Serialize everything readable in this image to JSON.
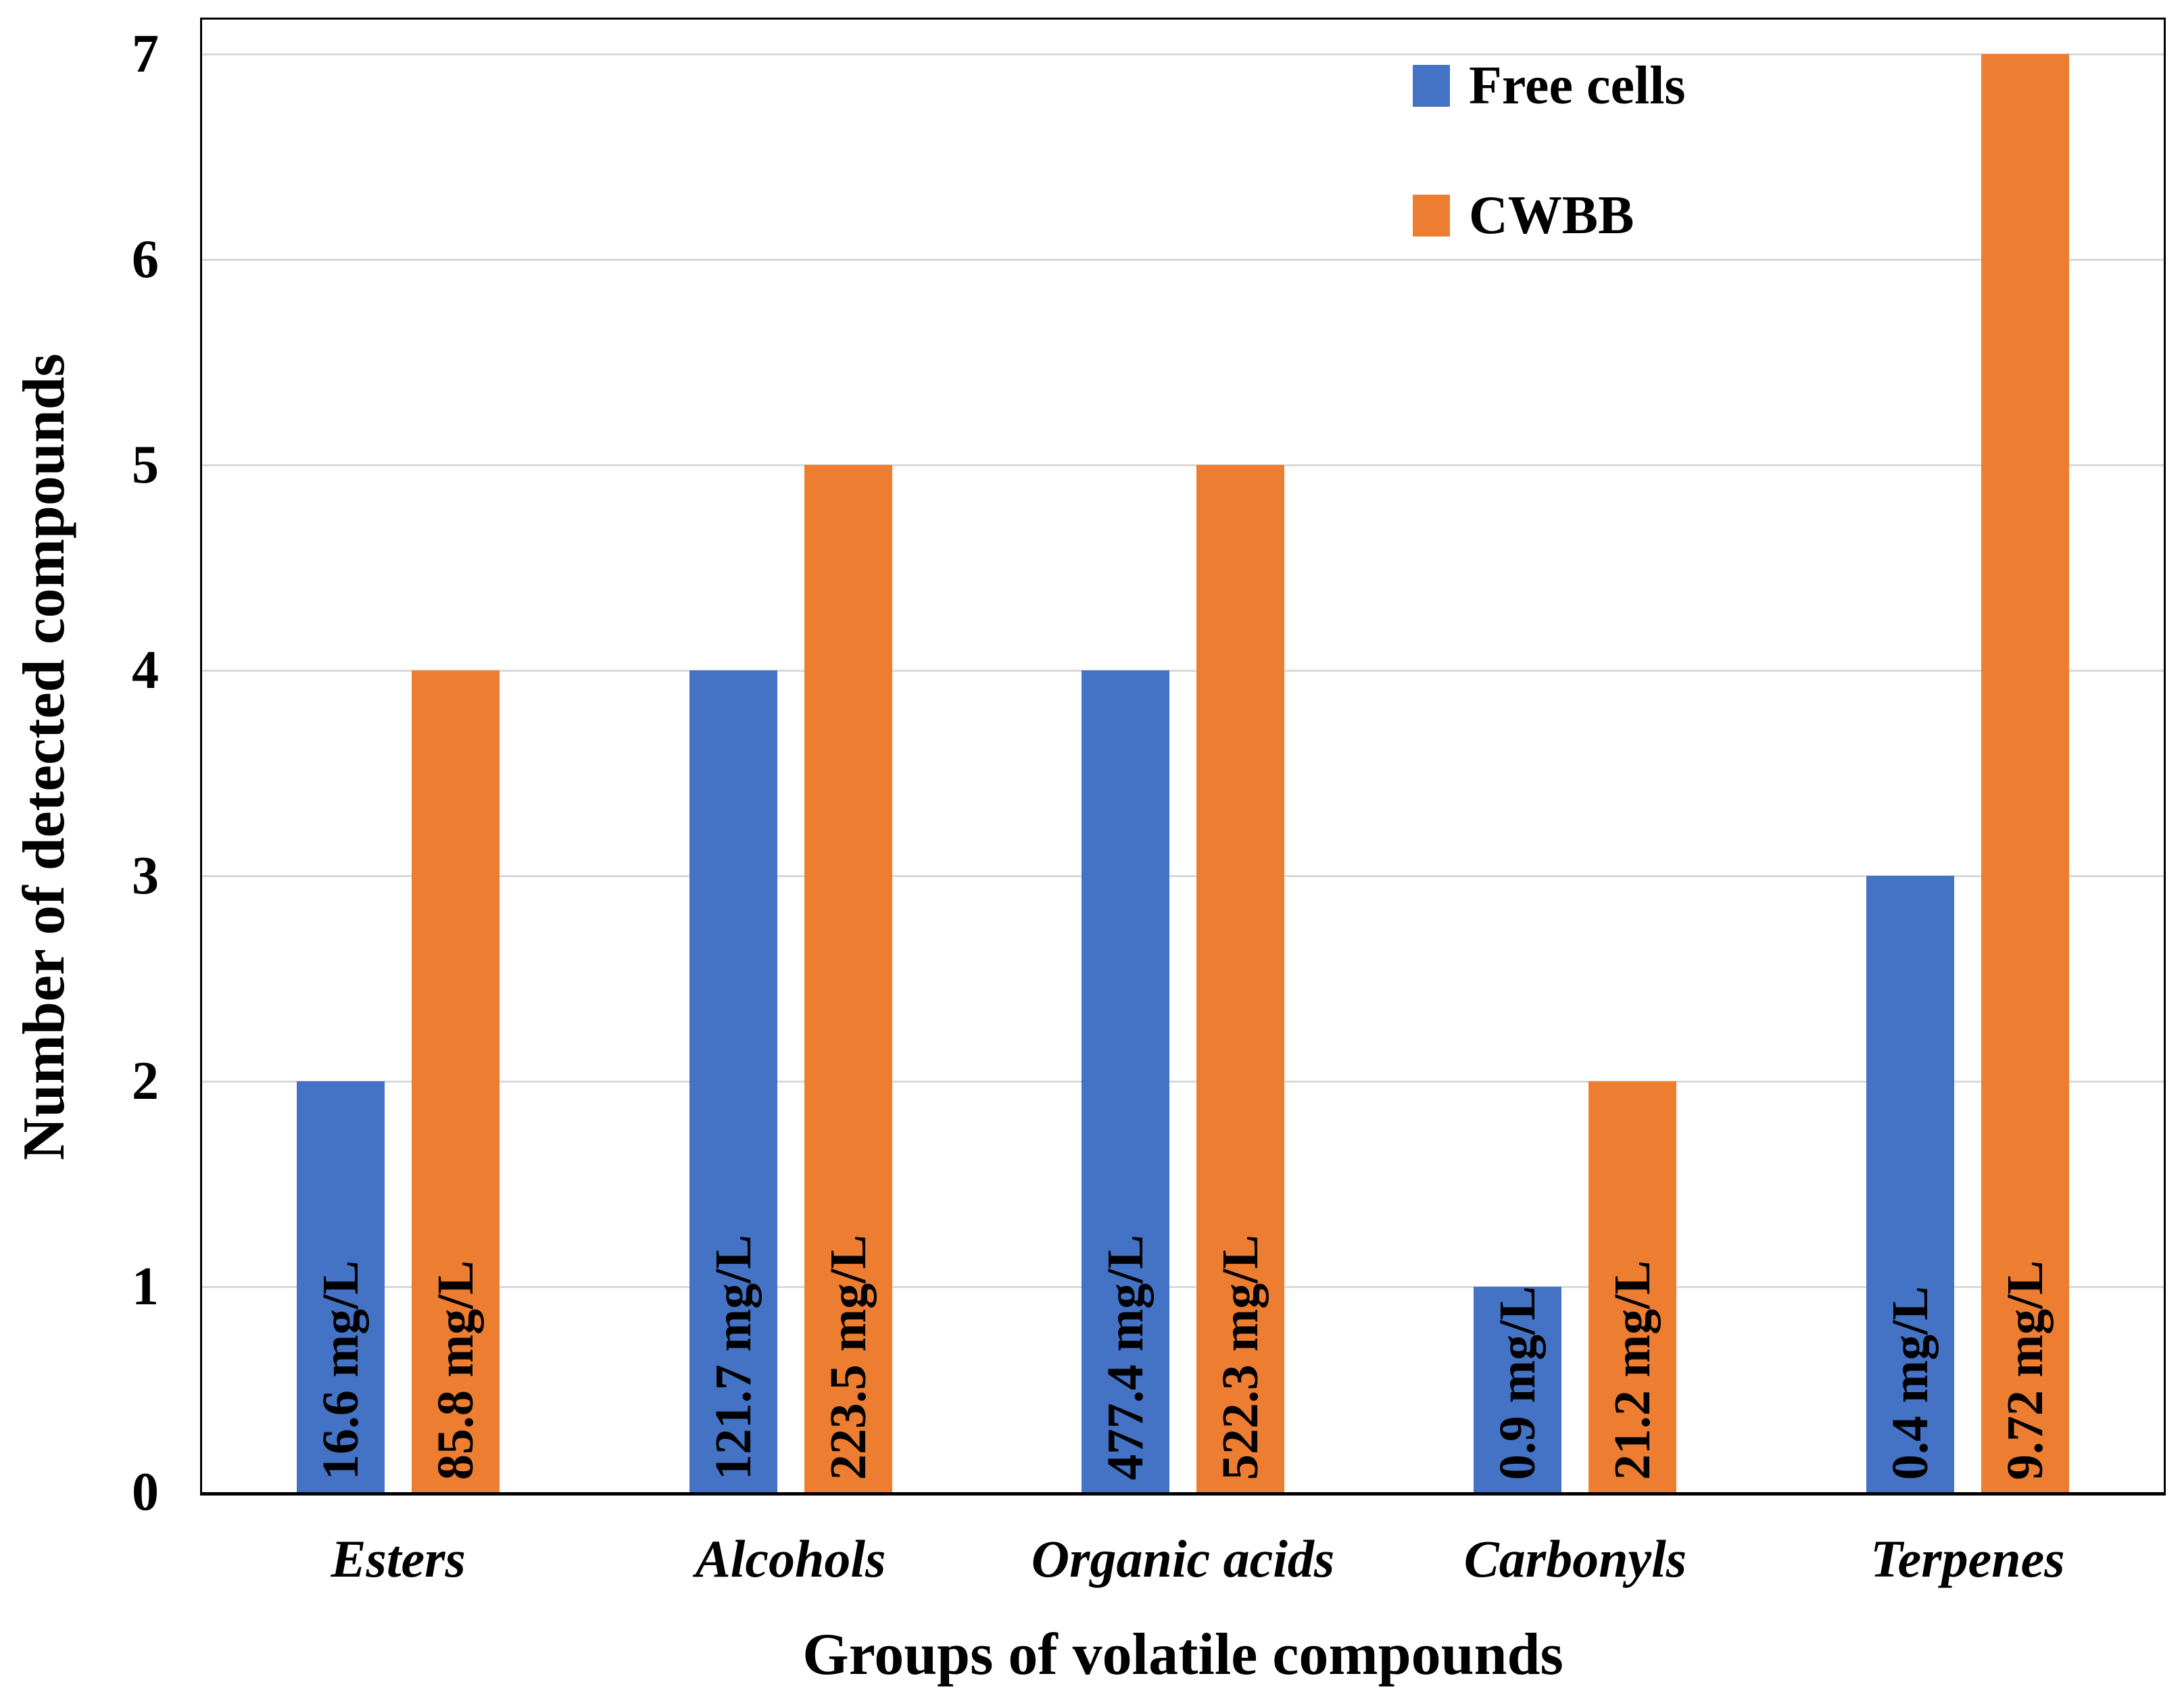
{
  "figure": {
    "background": "#ffffff",
    "plot_border_color": "#000000",
    "gridline_color": "#d9d9d9",
    "text_color": "#000000"
  },
  "chart_data": {
    "type": "bar",
    "title": "",
    "xlabel": "Groups of volatile compounds",
    "ylabel": "Number of detected compounds",
    "categories": [
      "Esters",
      "Alcohols",
      "Organic acids",
      "Carbonyls",
      "Terpenes"
    ],
    "series": [
      {
        "name": "Free cells",
        "color": "#4472C4",
        "values": [
          2,
          4,
          4,
          1,
          3
        ],
        "bar_labels": [
          "16.6 mg/L",
          "121.7 mg/L",
          "477.4 mg/L",
          "0.9 mg/L",
          "0.4 mg/L"
        ]
      },
      {
        "name": "CWBB",
        "color": "#ED7D31",
        "values": [
          4,
          5,
          5,
          2,
          7
        ],
        "bar_labels": [
          "85.8 mg/L",
          "223.5 mg/L",
          "522.3 mg/L",
          "21.2 mg/L",
          "9.72 mg/L"
        ]
      }
    ],
    "ylim": [
      0,
      7
    ],
    "yticks": [
      0,
      1,
      2,
      3,
      4,
      5,
      6,
      7
    ],
    "grid": true,
    "legend_position": "top-right-inside"
  }
}
